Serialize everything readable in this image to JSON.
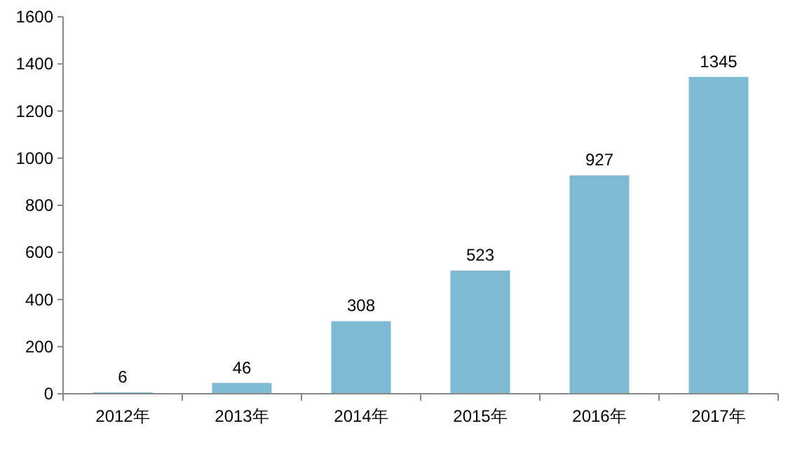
{
  "chart_data": {
    "type": "bar",
    "categories": [
      "2012年",
      "2013年",
      "2014年",
      "2015年",
      "2016年",
      "2017年"
    ],
    "values": [
      6,
      46,
      308,
      523,
      927,
      1345
    ],
    "color": "#7fbad5",
    "ylim": [
      0,
      1600
    ],
    "yticks": [
      0,
      200,
      400,
      600,
      800,
      1000,
      1200,
      1400,
      1600
    ],
    "data_labels": true
  }
}
